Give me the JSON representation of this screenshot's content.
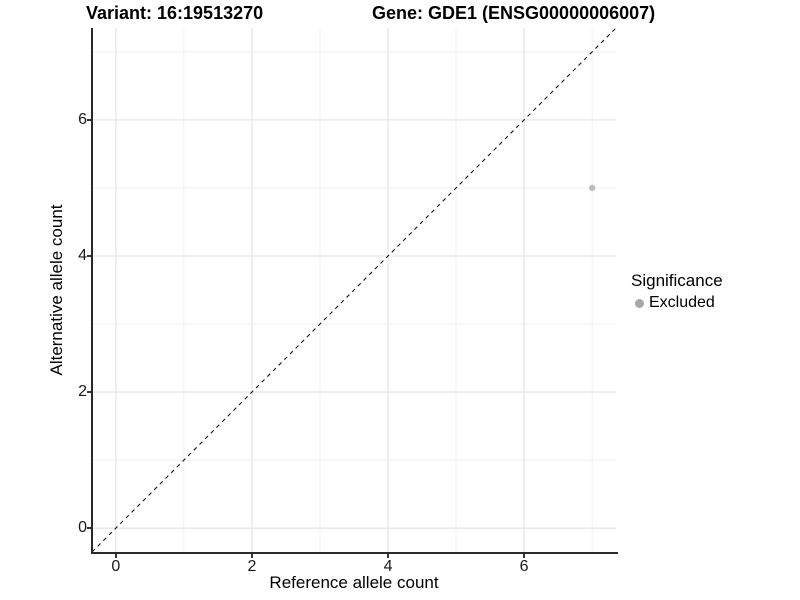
{
  "titles": {
    "variant": "Variant: 16:19513270",
    "gene": "Gene: GDE1 (ENSG00000006007)"
  },
  "chart_data": {
    "type": "scatter",
    "title": "Variant: 16:19513270        Gene: GDE1 (ENSG00000006007)",
    "xlabel": "Reference allele count",
    "ylabel": "Alternative allele count",
    "xlim": [
      -0.35,
      7.35
    ],
    "ylim": [
      -0.35,
      7.35
    ],
    "x_major_ticks": [
      0,
      2,
      4,
      6
    ],
    "y_major_ticks": [
      0,
      2,
      4,
      6
    ],
    "x_minor_gridlines": [
      1,
      3,
      5,
      7
    ],
    "y_minor_gridlines": [
      1,
      3,
      5,
      7
    ],
    "grid": true,
    "legend_position": "right",
    "series": [
      {
        "name": "Excluded",
        "color": "#bcbcbc",
        "points": [
          {
            "x": 7,
            "y": 5
          }
        ]
      }
    ],
    "reference_line": {
      "kind": "identity y=x",
      "style": "dashed",
      "color": "#111111",
      "from": [
        -0.35,
        -0.35
      ],
      "to": [
        7.35,
        7.35
      ]
    },
    "legend": {
      "title": "Significance",
      "entries": [
        {
          "label": "Excluded",
          "color": "#a8a8a8"
        }
      ]
    },
    "styles": {
      "grid_major_color": "#e7e7e7",
      "grid_minor_color": "#f1f1f1",
      "axis_line_color": "#2a2a2a",
      "tick_color": "#333333",
      "point_radius": 3.2,
      "background": "#ffffff"
    }
  }
}
